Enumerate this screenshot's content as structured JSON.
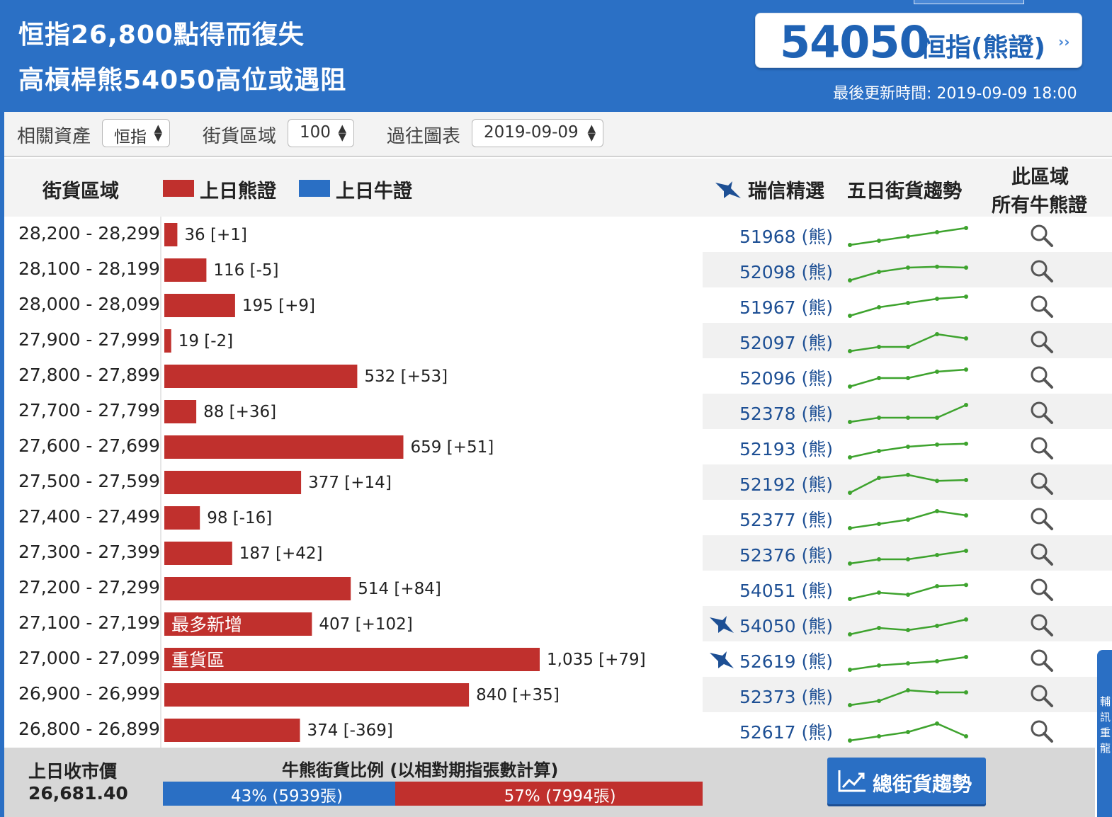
{
  "header": {
    "headline_line1": "恒指26,800點得而復失",
    "headline_line2": "高槓桿熊54050高位或遇阻",
    "featured_code": "54050",
    "featured_name": "恒指(熊證)",
    "featured_arrow": "››",
    "last_update": "最後更新時間: 2019-09-09 18:00"
  },
  "filters": {
    "asset_label": "相關資產",
    "asset_value": "恒指",
    "range_label": "街貨區域",
    "range_value": "100",
    "history_label": "過往圖表",
    "history_value": "2019-09-09"
  },
  "table_header": {
    "range": "街貨區域",
    "legend_bear": "上日熊證",
    "legend_bull": "上日牛證",
    "ubs_pick": "瑞信精選",
    "trend": "五日街貨趨勢",
    "all_line1": "此區域",
    "all_line2": "所有牛熊證"
  },
  "colors": {
    "header_blue": "#2b70c5",
    "bear_red": "#c0302d",
    "bull_blue": "#2a6fc4",
    "link_blue": "#1d4f94",
    "trend_green": "#3ea32e"
  },
  "chart_data": {
    "type": "bar",
    "orientation": "horizontal",
    "series": [
      {
        "name": "上日熊證"
      }
    ],
    "rows": [
      {
        "range": "28,200 - 28,299",
        "value": 36,
        "change": "+1",
        "label": "36 [+1]",
        "code": "51968 (熊)",
        "ubs": false,
        "tag": "",
        "trend": [
          0,
          1,
          2,
          3,
          4
        ]
      },
      {
        "range": "28,100 - 28,199",
        "value": 116,
        "change": "-5",
        "label": "116 [-5]",
        "code": "52098 (熊)",
        "ubs": false,
        "tag": "",
        "trend": [
          0,
          2,
          3,
          3.2,
          3
        ]
      },
      {
        "range": "28,000 - 28,099",
        "value": 195,
        "change": "+9",
        "label": "195 [+9]",
        "code": "51967 (熊)",
        "ubs": false,
        "tag": "",
        "trend": [
          0,
          2,
          3,
          4,
          4.5
        ]
      },
      {
        "range": "27,900 - 27,999",
        "value": 19,
        "change": "-2",
        "label": "19 [-2]",
        "code": "52097 (熊)",
        "ubs": false,
        "tag": "",
        "trend": [
          0,
          1,
          1,
          4,
          3
        ]
      },
      {
        "range": "27,800 - 27,899",
        "value": 532,
        "change": "+53",
        "label": "532 [+53]",
        "code": "52096 (熊)",
        "ubs": false,
        "tag": "",
        "trend": [
          0,
          2,
          2,
          3.5,
          4
        ]
      },
      {
        "range": "27,700 - 27,799",
        "value": 88,
        "change": "+36",
        "label": "88 [+36]",
        "code": "52378 (熊)",
        "ubs": false,
        "tag": "",
        "trend": [
          0,
          1,
          1,
          1,
          4
        ]
      },
      {
        "range": "27,600 - 27,699",
        "value": 659,
        "change": "+51",
        "label": "659 [+51]",
        "code": "52193 (熊)",
        "ubs": false,
        "tag": "",
        "trend": [
          0,
          1.5,
          2.5,
          3,
          3.2
        ]
      },
      {
        "range": "27,500 - 27,599",
        "value": 377,
        "change": "+14",
        "label": "377 [+14]",
        "code": "52192 (熊)",
        "ubs": false,
        "tag": "",
        "trend": [
          0,
          3.5,
          4.2,
          2.8,
          3
        ]
      },
      {
        "range": "27,400 - 27,499",
        "value": 98,
        "change": "-16",
        "label": "98 [-16]",
        "code": "52377 (熊)",
        "ubs": false,
        "tag": "",
        "trend": [
          0,
          1,
          2,
          4,
          3
        ]
      },
      {
        "range": "27,300 - 27,399",
        "value": 187,
        "change": "+42",
        "label": "187 [+42]",
        "code": "52376 (熊)",
        "ubs": false,
        "tag": "",
        "trend": [
          0,
          1,
          1,
          2,
          3
        ]
      },
      {
        "range": "27,200 - 27,299",
        "value": 514,
        "change": "+84",
        "label": "514 [+84]",
        "code": "54051 (熊)",
        "ubs": false,
        "tag": "",
        "trend": [
          0,
          1.5,
          1,
          3,
          3.3
        ]
      },
      {
        "range": "27,100 - 27,199",
        "value": 407,
        "change": "+102",
        "label": "407 [+102]",
        "code": "54050 (熊)",
        "ubs": true,
        "tag": "最多新增",
        "trend": [
          0,
          1.5,
          1,
          2,
          3.5
        ]
      },
      {
        "range": "27,000 - 27,099",
        "value": 1035,
        "change": "+79",
        "label": "1,035 [+79]",
        "code": "52619 (熊)",
        "ubs": true,
        "tag": "重貨區",
        "trend": [
          0,
          1,
          1.5,
          2,
          3
        ]
      },
      {
        "range": "26,900 - 26,999",
        "value": 840,
        "change": "+35",
        "label": "840 [+35]",
        "code": "52373 (熊)",
        "ubs": false,
        "tag": "",
        "trend": [
          0,
          1,
          3.5,
          3,
          3
        ]
      },
      {
        "range": "26,800 - 26,899",
        "value": 374,
        "change": "-369",
        "label": "374 [-369]",
        "code": "52617 (熊)",
        "ubs": false,
        "tag": "",
        "trend": [
          0,
          1,
          2,
          4,
          1
        ]
      }
    ]
  },
  "footer": {
    "close_label": "上日收市價",
    "close_value": "26,681.40",
    "ratio_title": "牛熊街貨比例 (以相對期指張數計算)",
    "bull_fraction": 0.43,
    "bull_text": "43% (5939張)",
    "bear_text": "57% (7994張)",
    "trend_button": "總街貨趨勢"
  },
  "side_tab": {
    "text": "輔訊重龍"
  }
}
